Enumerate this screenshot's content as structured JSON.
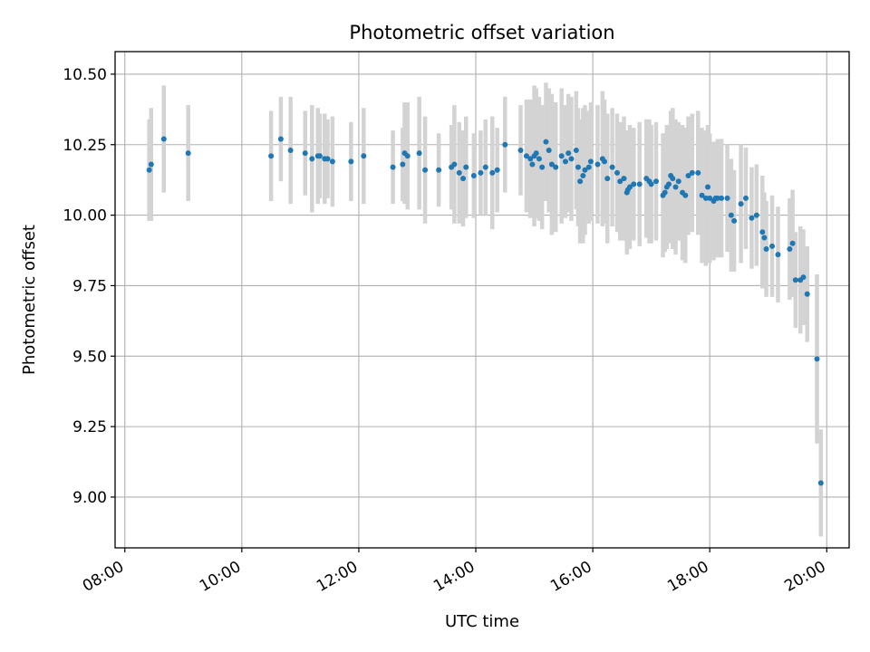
{
  "chart_data": {
    "type": "scatter",
    "title": "Photometric offset variation",
    "xlabel": "UTC time",
    "ylabel": "Photometric offset",
    "x_ticks": [
      "08:00",
      "10:00",
      "12:00",
      "14:00",
      "16:00",
      "18:00",
      "20:00"
    ],
    "y_ticks": [
      "9.00",
      "9.25",
      "9.50",
      "9.75",
      "10.00",
      "10.25",
      "10.50"
    ],
    "xlim": [
      "07:50",
      "20:23"
    ],
    "ylim": [
      8.82,
      10.58
    ],
    "grid": true,
    "colors": {
      "point": "#1f77b4",
      "errorbar": "#d3d3d3",
      "grid": "#b0b0b0"
    },
    "series": [
      {
        "x": [
          "08:25",
          "08:27",
          "08:40",
          "09:05",
          "10:30",
          "10:40",
          "10:50",
          "11:05",
          "11:12",
          "11:18",
          "11:20",
          "11:25",
          "11:28",
          "11:33",
          "11:52",
          "12:05",
          "12:35",
          "12:45",
          "12:47",
          "12:50",
          "13:02",
          "13:08",
          "13:22",
          "13:35",
          "13:38",
          "13:43",
          "13:47",
          "13:50",
          "13:58",
          "14:05",
          "14:10",
          "14:17",
          "14:22",
          "14:30",
          "14:46",
          "14:52",
          "14:56",
          "14:58",
          "15:00",
          "15:02",
          "15:05",
          "15:08",
          "15:12",
          "15:15",
          "15:18",
          "15:22",
          "15:28",
          "15:32",
          "15:35",
          "15:38",
          "15:43",
          "15:45",
          "15:47",
          "15:50",
          "15:52",
          "15:56",
          "15:58",
          "16:05",
          "16:10",
          "16:12",
          "16:15",
          "16:20",
          "16:25",
          "16:28",
          "16:32",
          "16:35",
          "16:36",
          "16:38",
          "16:42",
          "16:48",
          "16:55",
          "16:58",
          "17:00",
          "17:05",
          "17:12",
          "17:14",
          "17:16",
          "17:18",
          "17:20",
          "17:22",
          "17:25",
          "17:28",
          "17:32",
          "17:35",
          "17:38",
          "17:42",
          "17:48",
          "17:52",
          "17:56",
          "17:58",
          "18:00",
          "18:04",
          "18:06",
          "18:08",
          "18:12",
          "18:18",
          "18:22",
          "18:25",
          "18:32",
          "18:37",
          "18:43",
          "18:48",
          "18:54",
          "18:56",
          "18:58",
          "19:04",
          "19:10",
          "19:22",
          "19:25",
          "19:28",
          "19:33",
          "19:36",
          "19:40",
          "19:50",
          "19:54"
        ],
        "y": [
          10.16,
          10.18,
          10.27,
          10.22,
          10.21,
          10.27,
          10.23,
          10.22,
          10.2,
          10.21,
          10.21,
          10.2,
          10.2,
          10.19,
          10.19,
          10.21,
          10.17,
          10.18,
          10.22,
          10.21,
          10.22,
          10.16,
          10.16,
          10.17,
          10.18,
          10.15,
          10.13,
          10.17,
          10.14,
          10.15,
          10.17,
          10.15,
          10.16,
          10.25,
          10.23,
          10.21,
          10.2,
          10.18,
          10.21,
          10.22,
          10.2,
          10.17,
          10.26,
          10.23,
          10.18,
          10.17,
          10.21,
          10.19,
          10.22,
          10.2,
          10.23,
          10.17,
          10.12,
          10.14,
          10.16,
          10.17,
          10.19,
          10.18,
          10.2,
          10.19,
          10.13,
          10.17,
          10.15,
          10.12,
          10.13,
          10.08,
          10.09,
          10.1,
          10.11,
          10.11,
          10.13,
          10.12,
          10.11,
          10.12,
          10.07,
          10.08,
          10.1,
          10.11,
          10.14,
          10.13,
          10.1,
          10.12,
          10.08,
          10.07,
          10.14,
          10.15,
          10.15,
          10.07,
          10.06,
          10.1,
          10.06,
          10.05,
          10.06,
          10.06,
          10.06,
          10.06,
          10.0,
          9.98,
          10.04,
          10.06,
          9.99,
          10.0,
          9.94,
          9.92,
          9.88,
          9.89,
          9.86,
          9.88,
          9.9,
          9.77,
          9.77,
          9.78,
          9.72,
          9.49,
          9.05
        ],
        "yerr": [
          0.18,
          0.2,
          0.19,
          0.17,
          0.16,
          0.15,
          0.19,
          0.15,
          0.19,
          0.17,
          0.15,
          0.16,
          0.14,
          0.16,
          0.14,
          0.17,
          0.13,
          0.13,
          0.18,
          0.19,
          0.2,
          0.19,
          0.13,
          0.15,
          0.21,
          0.18,
          0.17,
          0.18,
          0.15,
          0.15,
          0.17,
          0.2,
          0.15,
          0.17,
          0.16,
          0.2,
          0.21,
          0.18,
          0.25,
          0.23,
          0.22,
          0.22,
          0.21,
          0.22,
          0.25,
          0.23,
          0.24,
          0.2,
          0.21,
          0.22,
          0.21,
          0.21,
          0.22,
          0.24,
          0.23,
          0.2,
          0.21,
          0.21,
          0.24,
          0.22,
          0.23,
          0.21,
          0.21,
          0.21,
          0.22,
          0.22,
          0.21,
          0.22,
          0.2,
          0.22,
          0.21,
          0.22,
          0.21,
          0.21,
          0.22,
          0.21,
          0.22,
          0.21,
          0.23,
          0.25,
          0.24,
          0.21,
          0.24,
          0.24,
          0.21,
          0.21,
          0.22,
          0.24,
          0.24,
          0.22,
          0.23,
          0.21,
          0.2,
          0.21,
          0.21,
          0.19,
          0.2,
          0.18,
          0.21,
          0.18,
          0.18,
          0.18,
          0.2,
          0.16,
          0.17,
          0.18,
          0.17,
          0.18,
          0.19,
          0.17,
          0.19,
          0.17,
          0.17,
          0.3,
          0.19
        ]
      }
    ]
  }
}
